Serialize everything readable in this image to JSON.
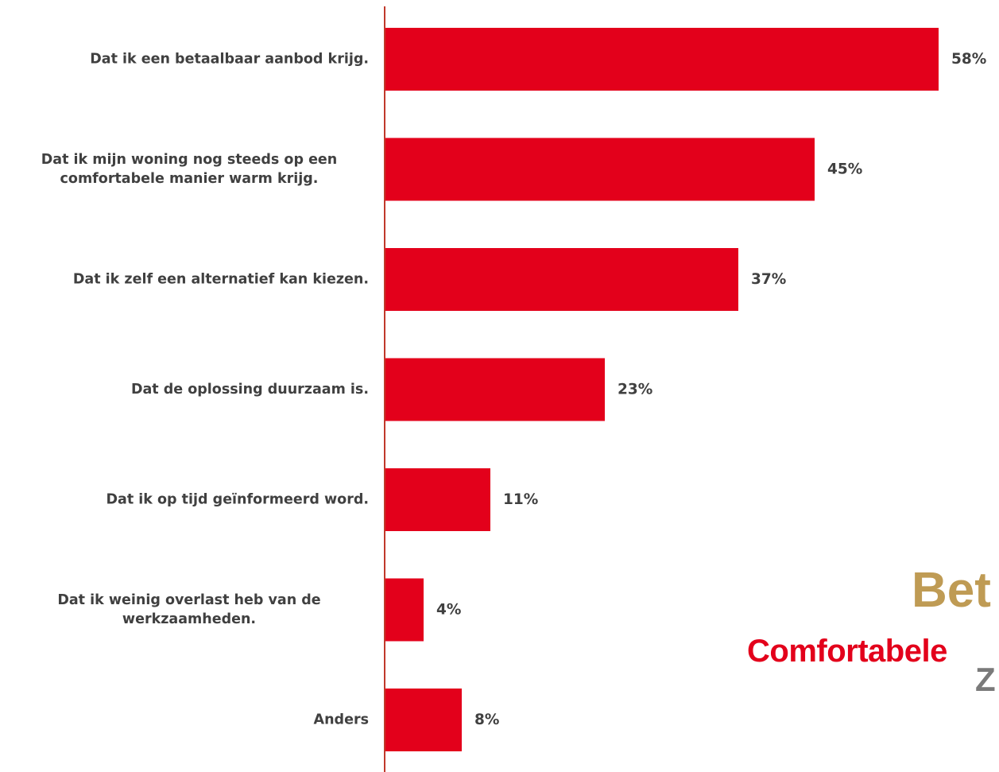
{
  "chart_data": {
    "type": "bar",
    "orientation": "horizontal",
    "title": "",
    "xlabel": "",
    "ylabel": "",
    "categories": [
      [
        "Dat ik een betaalbaar aanbod krijg."
      ],
      [
        "Dat ik mijn woning nog steeds op een",
        "comfortabele manier warm krijg."
      ],
      [
        "Dat ik zelf een alternatief kan kiezen."
      ],
      [
        "Dat de oplossing duurzaam is."
      ],
      [
        "Dat ik op tijd geïnformeerd word."
      ],
      [
        "Dat ik weinig overlast heb van de",
        "werkzaamheden."
      ],
      [
        "Anders"
      ]
    ],
    "values": [
      58,
      45,
      37,
      23,
      11,
      4,
      8
    ],
    "value_labels": [
      "58%",
      "45%",
      "37%",
      "23%",
      "11%",
      "4%",
      "8%"
    ],
    "unit": "%",
    "xlim": [
      0,
      58
    ],
    "grid": false,
    "legend": "none",
    "bar_color": "#e3001b",
    "axis_color": "#c0392b"
  },
  "word_cloud": {
    "words": [
      {
        "text": "Bet",
        "color": "#bf9b54"
      },
      {
        "text": "Comfortabele",
        "color": "#e3001b"
      },
      {
        "text": "Z",
        "color": "#7a7a7a"
      }
    ]
  }
}
